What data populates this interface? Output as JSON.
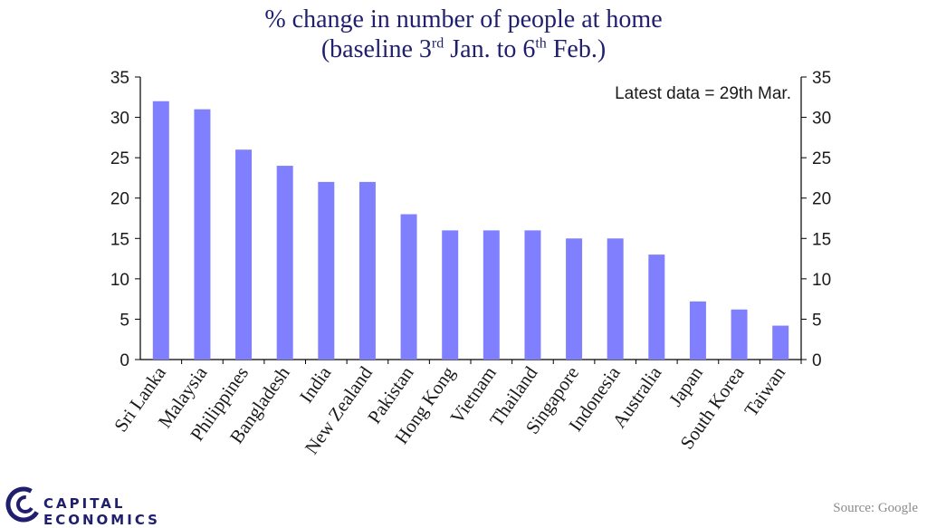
{
  "chart_data": {
    "type": "bar",
    "title_line1": "% change in number of people at home",
    "title_line2": {
      "pre": "(baseline 3",
      "sup1": "rd",
      "mid": " Jan. to 6",
      "sup2": "th",
      "post": " Feb.)"
    },
    "annotation": "Latest data = 29th  Mar.",
    "categories": [
      "Sri Lanka",
      "Malaysia",
      "Philippines",
      "Bangladesh",
      "India",
      "New Zealand",
      "Pakistan",
      "Hong Kong",
      "Vietnam",
      "Thailand",
      "Singapore",
      "Indonesia",
      "Australia",
      "Japan",
      "South Korea",
      "Taiwan"
    ],
    "values": [
      32,
      31,
      26,
      24,
      22,
      22,
      18,
      16,
      16,
      16,
      15,
      15,
      13,
      7.2,
      6.2,
      4.2
    ],
    "ylim": [
      0,
      35
    ],
    "yticks": [
      0,
      5,
      10,
      15,
      20,
      25,
      30,
      35
    ],
    "dual_y_axis": true,
    "grid": false,
    "bar_color": "#8080ff"
  },
  "branding": {
    "logo_text": "CAPITAL ECONOMICS",
    "logo_icon": "capital-economics-logo-icon",
    "brand_color": "#1f1f6e"
  },
  "source": "Source: Google"
}
